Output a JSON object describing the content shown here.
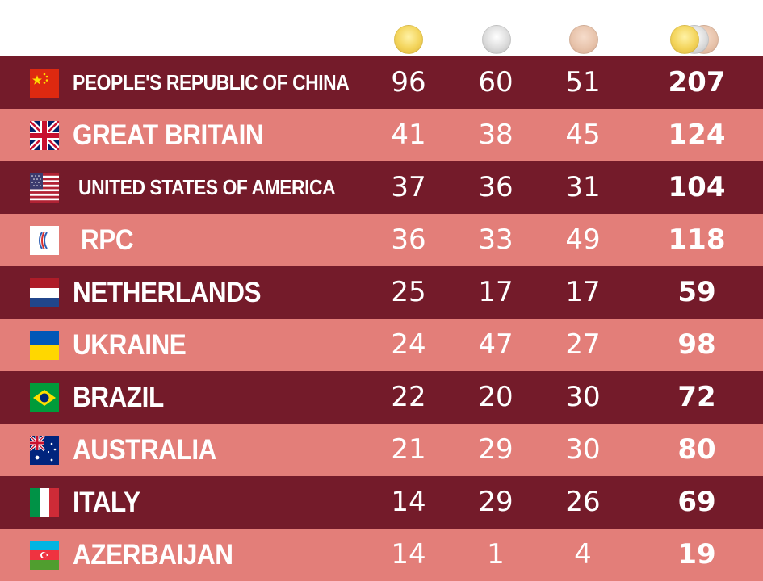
{
  "header": {
    "medals": [
      "gold-medal-icon",
      "silver-medal-icon",
      "bronze-medal-icon",
      "total-medals-icon"
    ]
  },
  "colors": {
    "dark_row": "#741b2a",
    "light_row": "#e37e79",
    "text": "#ffffff"
  },
  "rows": [
    {
      "country": "PEOPLE'S REPUBLIC OF CHINA",
      "flag": "china-flag-icon",
      "gold": "96",
      "silver": "60",
      "bronze": "51",
      "total": "207"
    },
    {
      "country": "GREAT BRITAIN",
      "flag": "uk-flag-icon",
      "gold": "41",
      "silver": "38",
      "bronze": "45",
      "total": "124"
    },
    {
      "country": "UNITED STATES OF AMERICA",
      "flag": "usa-flag-icon",
      "gold": "37",
      "silver": "36",
      "bronze": "31",
      "total": "104"
    },
    {
      "country": "RPC",
      "flag": "rpc-flag-icon",
      "gold": "36",
      "silver": "33",
      "bronze": "49",
      "total": "118"
    },
    {
      "country": "NETHERLANDS",
      "flag": "netherlands-flag-icon",
      "gold": "25",
      "silver": "17",
      "bronze": "17",
      "total": "59"
    },
    {
      "country": "UKRAINE",
      "flag": "ukraine-flag-icon",
      "gold": "24",
      "silver": "47",
      "bronze": "27",
      "total": "98"
    },
    {
      "country": "BRAZIL",
      "flag": "brazil-flag-icon",
      "gold": "22",
      "silver": "20",
      "bronze": "30",
      "total": "72"
    },
    {
      "country": "AUSTRALIA",
      "flag": "australia-flag-icon",
      "gold": "21",
      "silver": "29",
      "bronze": "30",
      "total": "80"
    },
    {
      "country": "ITALY",
      "flag": "italy-flag-icon",
      "gold": "14",
      "silver": "29",
      "bronze": "26",
      "total": "69"
    },
    {
      "country": "AZERBAIJAN",
      "flag": "azerbaijan-flag-icon",
      "gold": "14",
      "silver": "1",
      "bronze": "4",
      "total": "19"
    }
  ]
}
